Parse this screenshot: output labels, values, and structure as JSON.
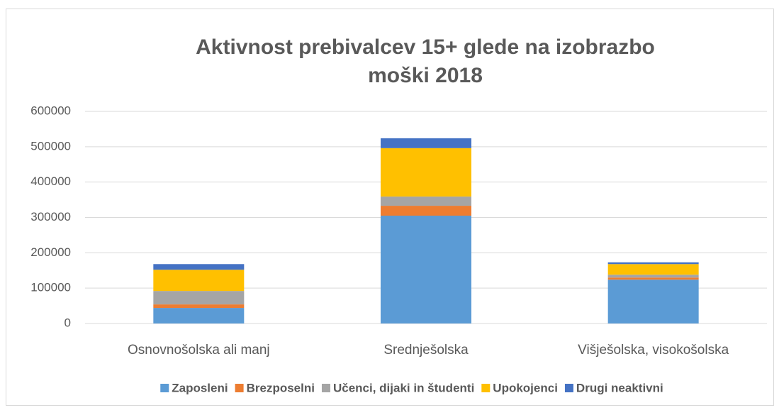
{
  "chart_data": {
    "type": "stacked_bar",
    "title": "Aktivnost prebivalcev 15+ glede na izobrazbo",
    "subtitle": "moški 2018",
    "categories": [
      "Osnovnošolska ali manj",
      "Srednješolska",
      "Višješolska, visokošolska"
    ],
    "series": [
      {
        "name": "Zaposleni",
        "color": "#5b9bd5",
        "values": [
          44000,
          305000,
          124000
        ]
      },
      {
        "name": "Brezposelni",
        "color": "#ed7d31",
        "values": [
          10000,
          28000,
          6000
        ]
      },
      {
        "name": "Učenci, dijaki in študenti",
        "color": "#a5a5a5",
        "values": [
          38000,
          26000,
          8000
        ]
      },
      {
        "name": "Upokojenci",
        "color": "#ffc000",
        "values": [
          60000,
          137000,
          30000
        ]
      },
      {
        "name": "Drugi neaktivni",
        "color": "#4472c4",
        "values": [
          16000,
          28000,
          5000
        ]
      }
    ],
    "ylim": [
      0,
      600000
    ],
    "yticks": [
      0,
      100000,
      200000,
      300000,
      400000,
      500000,
      600000
    ],
    "grid": true,
    "legend": "bottom"
  }
}
